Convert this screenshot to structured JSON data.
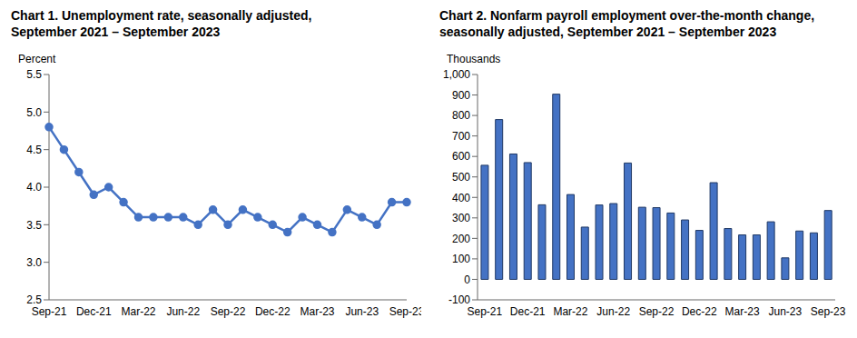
{
  "chart_data": [
    {
      "type": "line",
      "title": "Chart 1. Unemployment rate, seasonally adjusted,\nSeptember 2021 – September 2023",
      "y_label": "Percent",
      "categories": [
        "Sep-21",
        null,
        null,
        "Dec-21",
        null,
        null,
        "Mar-22",
        null,
        null,
        "Jun-22",
        null,
        null,
        "Sep-22",
        null,
        null,
        "Dec-22",
        null,
        null,
        "Mar-23",
        null,
        null,
        "Jun-23",
        null,
        null,
        "Sep-23"
      ],
      "values": [
        4.8,
        4.5,
        4.2,
        3.9,
        4.0,
        3.8,
        3.6,
        3.6,
        3.6,
        3.6,
        3.5,
        3.7,
        3.5,
        3.7,
        3.6,
        3.5,
        3.4,
        3.6,
        3.5,
        3.4,
        3.7,
        3.6,
        3.5,
        3.8,
        3.8
      ],
      "color": "#4472c4",
      "marker": "circle",
      "ylim": [
        2.5,
        5.5
      ],
      "yticks": [
        2.5,
        {
          "value": 3,
          "label": "3.0"
        },
        3.5,
        {
          "value": 4,
          "label": "4.0"
        },
        4.5,
        {
          "value": 5,
          "label": "5.0"
        },
        5.5
      ],
      "grid": false
    },
    {
      "type": "bar",
      "title": "Chart 2. Nonfarm payroll employment over-the-month change,\nseasonally adjusted, September 2021 – September 2023",
      "y_label": "Thousands",
      "categories": [
        "Sep-21",
        null,
        null,
        "Dec-21",
        null,
        null,
        "Mar-22",
        null,
        null,
        "Jun-22",
        null,
        null,
        "Sep-22",
        null,
        null,
        "Dec-22",
        null,
        null,
        "Mar-23",
        null,
        null,
        "Jun-23",
        null,
        null,
        "Sep-23"
      ],
      "values": [
        557,
        780,
        612,
        570,
        364,
        904,
        414,
        255,
        363,
        370,
        568,
        352,
        350,
        324,
        290,
        239,
        472,
        248,
        217,
        217,
        281,
        105,
        236,
        227,
        336
      ],
      "color": "#4472c4",
      "ylim": [
        -100,
        1000
      ],
      "yticks": [
        -100,
        0,
        100,
        200,
        300,
        400,
        500,
        600,
        700,
        800,
        900,
        {
          "value": 1000,
          "label": "1,000"
        }
      ],
      "grid": false
    }
  ]
}
